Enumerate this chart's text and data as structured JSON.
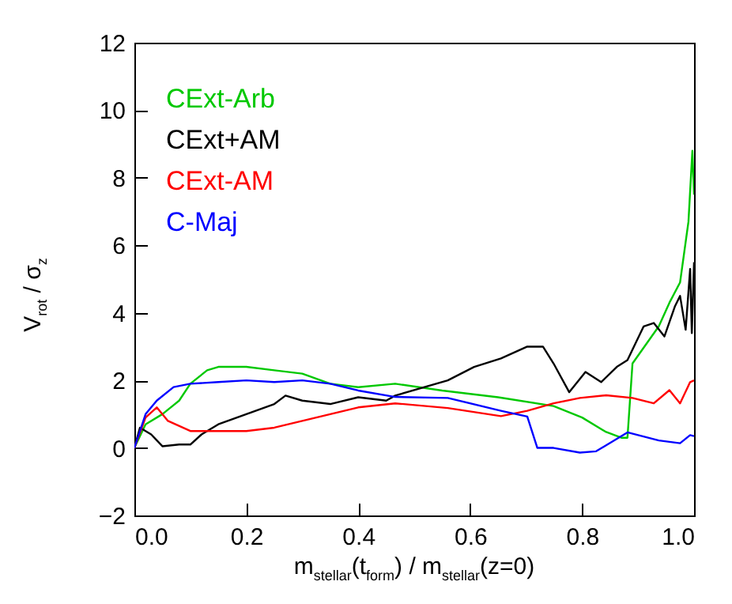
{
  "chart_data": {
    "type": "line",
    "xlabel": "m$_{stellar}$(t$_{form}$) / m$_{stellar}$(z=0)",
    "ylabel": "V$_{rot}$ / σ$_{z}$",
    "xlim": [
      0,
      1
    ],
    "ylim": [
      -2,
      12
    ],
    "xticks": [
      {
        "value": 0,
        "label": "0.0"
      },
      0.2,
      0.4,
      0.6,
      0.8,
      {
        "value": 1,
        "label": "1.0"
      }
    ],
    "yticks": [
      -2,
      0,
      2,
      4,
      6,
      8,
      10,
      12
    ],
    "grid": false,
    "legend": "top left",
    "series": [
      {
        "name": "CExt-Arb",
        "color": "#00c800",
        "x": [
          0,
          0.02,
          0.05,
          0.08,
          0.1,
          0.13,
          0.15,
          0.2,
          0.25,
          0.3,
          0.35,
          0.4,
          0.466,
          0.55,
          0.65,
          0.749,
          0.8,
          0.843,
          0.871,
          0.881,
          0.89,
          0.937,
          0.956,
          0.975,
          0.99,
          0.997,
          1.0
        ],
        "values": [
          0,
          0.7,
          1.0,
          1.4,
          1.9,
          2.3,
          2.4,
          2.4,
          2.3,
          2.2,
          1.9,
          1.8,
          1.9,
          1.7,
          1.5,
          1.24,
          0.9,
          0.47,
          0.3,
          0.3,
          2.5,
          3.6,
          4.3,
          4.9,
          6.7,
          8.8,
          7.5
        ]
      },
      {
        "name": "CExt+AM",
        "color": "#000000",
        "x": [
          0,
          0.01,
          0.03,
          0.05,
          0.08,
          0.1,
          0.12,
          0.15,
          0.2,
          0.25,
          0.27,
          0.3,
          0.35,
          0.4,
          0.45,
          0.466,
          0.56,
          0.607,
          0.655,
          0.702,
          0.73,
          0.749,
          0.777,
          0.806,
          0.834,
          0.862,
          0.881,
          0.91,
          0.928,
          0.947,
          0.966,
          0.975,
          0.985,
          0.993,
          0.996,
          1.0
        ],
        "values": [
          0,
          0.6,
          0.4,
          0.05,
          0.1,
          0.1,
          0.4,
          0.7,
          1.0,
          1.3,
          1.55,
          1.4,
          1.3,
          1.5,
          1.4,
          1.55,
          2.0,
          2.4,
          2.65,
          3.0,
          3.0,
          2.5,
          1.65,
          2.25,
          1.95,
          2.4,
          2.6,
          3.6,
          3.7,
          3.3,
          4.2,
          4.5,
          3.5,
          5.3,
          3.4,
          5.5
        ]
      },
      {
        "name": "CExt-AM",
        "color": "#ff0000",
        "x": [
          0,
          0.02,
          0.04,
          0.06,
          0.1,
          0.15,
          0.2,
          0.25,
          0.3,
          0.35,
          0.4,
          0.466,
          0.56,
          0.655,
          0.702,
          0.749,
          0.796,
          0.843,
          0.89,
          0.928,
          0.956,
          0.975,
          0.993,
          1.0
        ],
        "values": [
          0,
          0.9,
          1.2,
          0.8,
          0.5,
          0.5,
          0.5,
          0.6,
          0.8,
          1.0,
          1.2,
          1.32,
          1.18,
          0.94,
          1.1,
          1.32,
          1.48,
          1.56,
          1.48,
          1.32,
          1.71,
          1.32,
          1.95,
          2.0
        ]
      },
      {
        "name": "C-Maj",
        "color": "#0000ff",
        "x": [
          0,
          0.02,
          0.04,
          0.07,
          0.1,
          0.15,
          0.2,
          0.25,
          0.3,
          0.35,
          0.4,
          0.466,
          0.56,
          0.655,
          0.702,
          0.72,
          0.749,
          0.796,
          0.825,
          0.881,
          0.937,
          0.975,
          0.993,
          1.0
        ],
        "values": [
          0,
          1.0,
          1.4,
          1.8,
          1.9,
          1.95,
          2.0,
          1.95,
          2.0,
          1.9,
          1.7,
          1.51,
          1.48,
          1.1,
          0.93,
          0.0,
          0.0,
          -0.14,
          -0.1,
          0.46,
          0.22,
          0.14,
          0.38,
          0.35
        ]
      }
    ]
  }
}
